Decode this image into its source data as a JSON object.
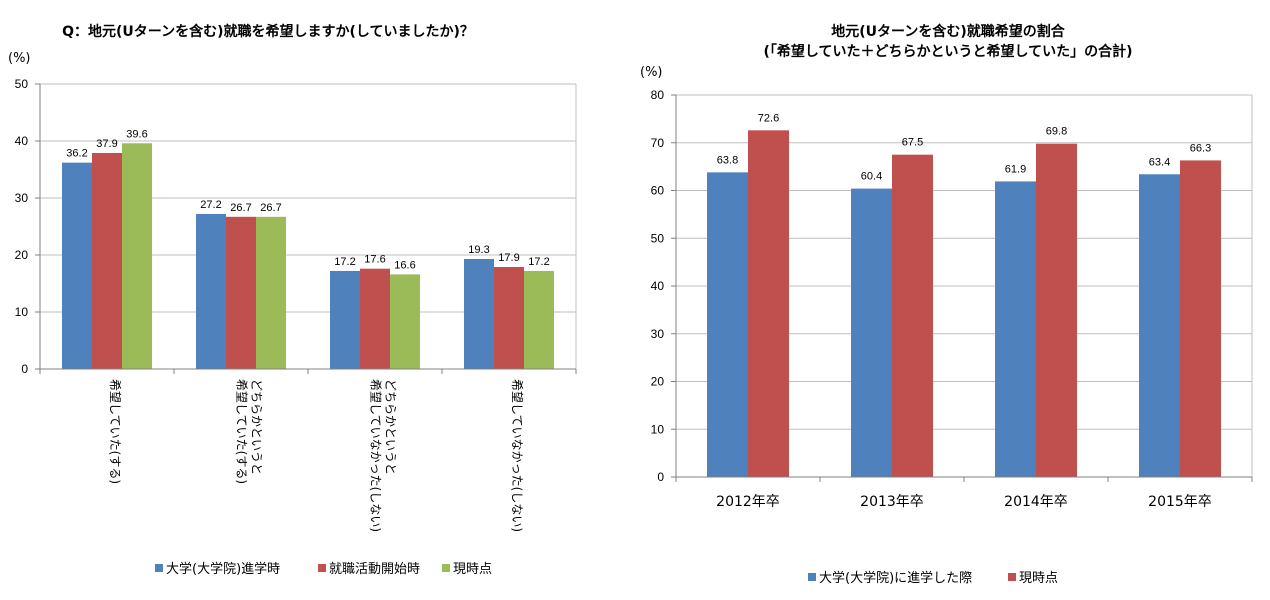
{
  "chart_data": [
    {
      "type": "bar",
      "title": "Q：地元(Uターンを含む)就職を希望しますか(していましたか)？",
      "ylabel": "(%)",
      "ylim": [
        0,
        50
      ],
      "yticks": [
        0,
        10,
        20,
        30,
        40,
        50
      ],
      "categories": [
        [
          "希望していた(する)"
        ],
        [
          "どちらかというと",
          "希望していた(する)"
        ],
        [
          "どちらかというと",
          "希望していなかった(しない)"
        ],
        [
          "希望していなかった(しない)"
        ]
      ],
      "series": [
        {
          "name": "大学(大学院)進学時",
          "color": "#4f81bd",
          "values": [
            36.2,
            27.2,
            17.2,
            19.3
          ]
        },
        {
          "name": "就職活動開始時",
          "color": "#c0504d",
          "values": [
            37.9,
            26.7,
            17.6,
            17.9
          ]
        },
        {
          "name": "現時点",
          "color": "#9bbb59",
          "values": [
            39.6,
            26.7,
            16.6,
            17.2
          ]
        }
      ],
      "legend_position": "bottom"
    },
    {
      "type": "bar",
      "title": "地元(Uターンを含む)就職希望の割合",
      "subtitle": "(「希望していた＋どちらかというと希望していた」の合計)",
      "ylabel": "(%)",
      "ylim": [
        0,
        80
      ],
      "yticks": [
        0,
        10,
        20,
        30,
        40,
        50,
        60,
        70,
        80
      ],
      "categories": [
        "2012年卒",
        "2013年卒",
        "2014年卒",
        "2015年卒"
      ],
      "series": [
        {
          "name": "大学(大学院)に進学した際",
          "color": "#4f81bd",
          "values": [
            63.8,
            60.4,
            61.9,
            63.4
          ]
        },
        {
          "name": "現時点",
          "color": "#c0504d",
          "values": [
            72.6,
            67.5,
            69.8,
            66.3
          ]
        }
      ],
      "legend_position": "bottom"
    }
  ]
}
